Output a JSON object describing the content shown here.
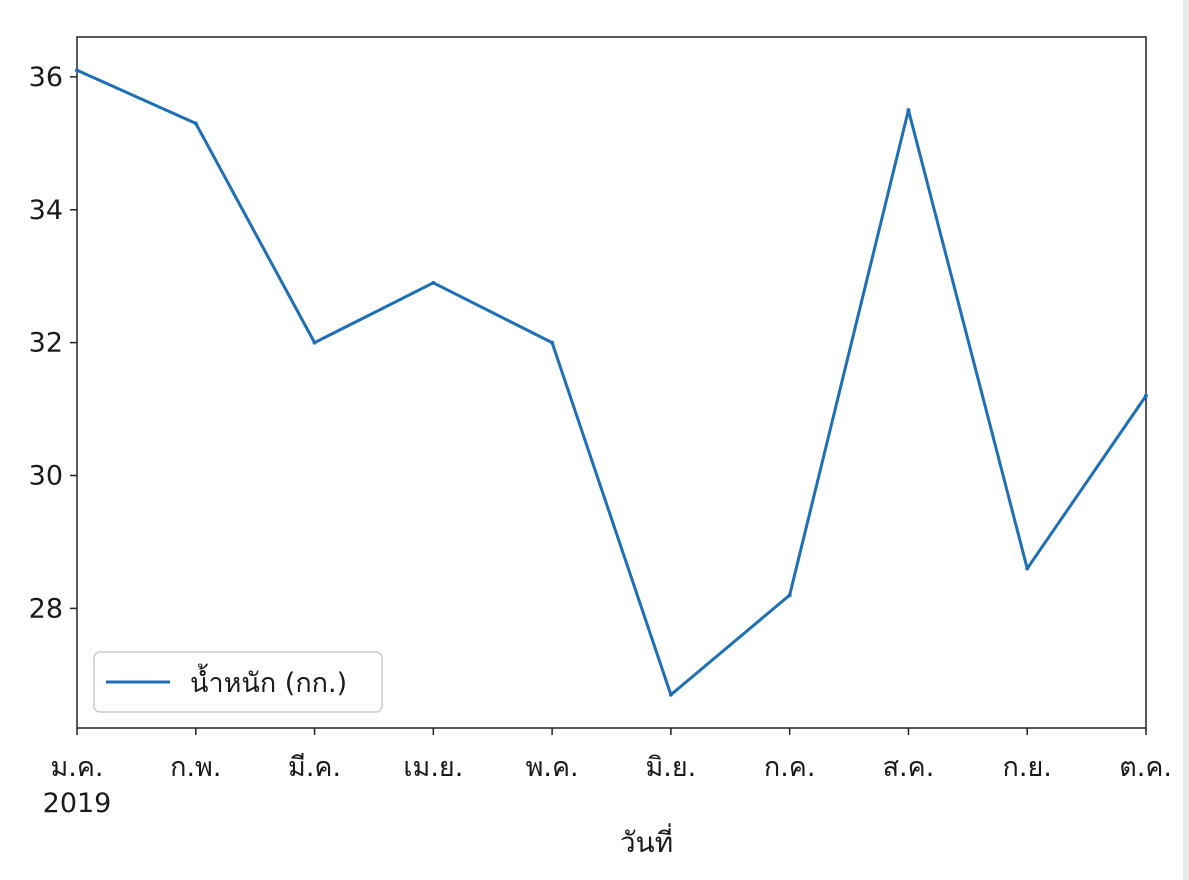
{
  "chart_data": {
    "type": "line",
    "x": [
      "ม.ค.",
      "ก.พ.",
      "มี.ค.",
      "เม.ย.",
      "พ.ค.",
      "มิ.ย.",
      "ก.ค.",
      "ส.ค.",
      "ก.ย.",
      "ต.ค."
    ],
    "year_label": "2019",
    "series": [
      {
        "name": "น้ำหนัก (กก.)",
        "color": "#1f6fb4",
        "values": [
          36.1,
          35.3,
          32.0,
          32.9,
          32.0,
          26.7,
          28.2,
          35.5,
          28.6,
          31.2
        ]
      }
    ],
    "y_ticks": [
      28,
      30,
      32,
      34,
      36
    ],
    "ylim": [
      26.2,
      36.6
    ],
    "xlabel": "วันที่",
    "ylabel": "",
    "grid": false,
    "legend_position": "lower-left"
  }
}
